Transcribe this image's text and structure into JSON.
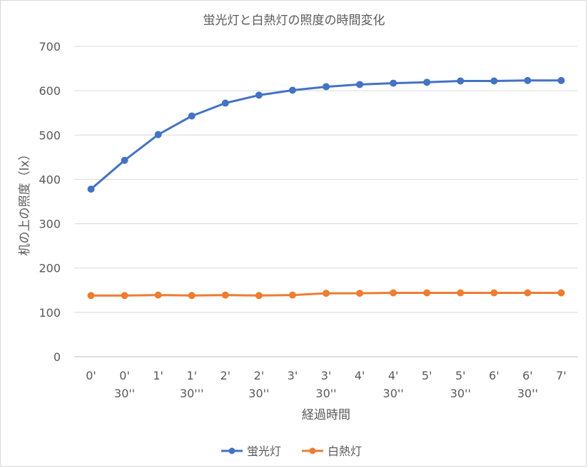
{
  "chart_data": {
    "type": "line",
    "title": "蛍光灯と白熱灯の照度の時間変化",
    "xlabel": "経過時間",
    "ylabel": "机の上の照度（lx）",
    "ylim": [
      0,
      700
    ],
    "yticks": [
      0,
      100,
      200,
      300,
      400,
      500,
      600,
      700
    ],
    "grid": true,
    "legend": "bottom",
    "categories": [
      [
        "0'"
      ],
      [
        "0'",
        "30''"
      ],
      [
        "1'"
      ],
      [
        "1'",
        "30'''"
      ],
      [
        "2'"
      ],
      [
        "2'",
        "30''"
      ],
      [
        "3'"
      ],
      [
        "3'",
        "30''"
      ],
      [
        "4'"
      ],
      [
        "4'",
        "30''"
      ],
      [
        "5'"
      ],
      [
        "5'",
        "30''"
      ],
      [
        "6'"
      ],
      [
        "6'",
        "30''"
      ],
      [
        "7'"
      ]
    ],
    "series": [
      {
        "name": "蛍光灯",
        "color": "#4472c4",
        "values": [
          378,
          443,
          501,
          543,
          572,
          590,
          601,
          609,
          614,
          617,
          619,
          622,
          622,
          623,
          623
        ]
      },
      {
        "name": "白熱灯",
        "color": "#ed7d31",
        "values": [
          138,
          138,
          139,
          138,
          139,
          138,
          139,
          143,
          143,
          144,
          144,
          144,
          144,
          144,
          144
        ]
      }
    ]
  }
}
